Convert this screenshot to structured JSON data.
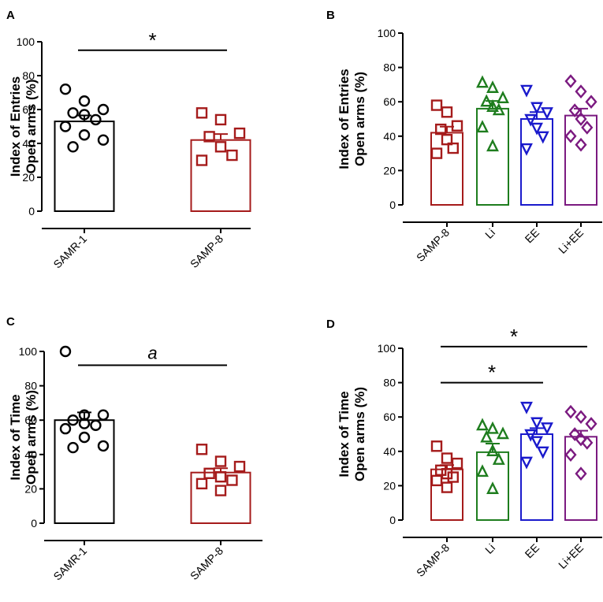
{
  "chart_data": [
    {
      "panel": "A",
      "type": "bar",
      "ylabel_line1": "Index of Entries",
      "ylabel_line2": "Open arms (%)",
      "ylim": [
        0,
        100
      ],
      "yticks": [
        "0",
        "20",
        "40",
        "60",
        "80",
        "100"
      ],
      "categories": [
        "SAMR-1",
        "SAMP-8"
      ],
      "values": [
        53,
        42
      ],
      "sem": [
        3.5,
        3.5
      ],
      "colors": [
        "#000000",
        "#a51b1b"
      ],
      "markers": [
        "circle",
        "square"
      ],
      "points": [
        [
          72,
          65,
          60,
          58,
          57,
          54,
          50,
          45,
          42,
          38
        ],
        [
          58,
          54,
          46,
          44,
          38,
          33,
          30
        ]
      ],
      "significance": [
        {
          "from": 0,
          "to": 1,
          "level": 95,
          "label": "*"
        }
      ]
    },
    {
      "panel": "B",
      "type": "bar",
      "ylabel_line1": "Index of Entries",
      "ylabel_line2": "Open arms (%)",
      "ylim": [
        0,
        100
      ],
      "yticks": [
        "0",
        "20",
        "40",
        "60",
        "80",
        "100"
      ],
      "categories": [
        "SAMP-8",
        "Li",
        "EE",
        "Li+EE"
      ],
      "values": [
        42,
        56,
        50,
        52
      ],
      "sem": [
        3.5,
        4.5,
        4,
        4
      ],
      "colors": [
        "#a51b1b",
        "#1e7d1e",
        "#1a1acc",
        "#7b1a80"
      ],
      "markers": [
        "square",
        "triangle-up",
        "triangle-down",
        "diamond"
      ],
      "points": [
        [
          58,
          54,
          46,
          44,
          38,
          33,
          30
        ],
        [
          71,
          68,
          62,
          60,
          57,
          55,
          45,
          34
        ],
        [
          67,
          57,
          54,
          50,
          45,
          40,
          33
        ],
        [
          72,
          66,
          60,
          55,
          50,
          45,
          40,
          35
        ]
      ],
      "significance": []
    },
    {
      "panel": "C",
      "type": "bar",
      "ylabel_line1": "Index of Time",
      "ylabel_line2": "Open arms (%)",
      "ylim": [
        0,
        100
      ],
      "yticks": [
        "0",
        "20",
        "40",
        "60",
        "80",
        "100"
      ],
      "categories": [
        "SAMR-1",
        "SAMP-8"
      ],
      "values": [
        60,
        29.5
      ],
      "sem": [
        4.5,
        2.5
      ],
      "colors": [
        "#000000",
        "#a51b1b"
      ],
      "markers": [
        "circle",
        "square"
      ],
      "points": [
        [
          100,
          63,
          63,
          60,
          58,
          57,
          55,
          50,
          45,
          44
        ],
        [
          43,
          36,
          33,
          29,
          27,
          25,
          23,
          19
        ]
      ],
      "significance": [
        {
          "from": 0,
          "to": 1,
          "level": 92,
          "label": "a"
        }
      ]
    },
    {
      "panel": "D",
      "type": "bar",
      "ylabel_line1": "Index of Time",
      "ylabel_line2": "Open arms (%)",
      "ylim": [
        0,
        100
      ],
      "yticks": [
        "0",
        "20",
        "40",
        "60",
        "80",
        "100"
      ],
      "categories": [
        "SAMP-8",
        "Li",
        "EE",
        "Li+EE"
      ],
      "values": [
        29.5,
        39.5,
        50,
        48.5
      ],
      "sem": [
        2.5,
        5,
        3.5,
        3.5
      ],
      "colors": [
        "#a51b1b",
        "#1e7d1e",
        "#1a1acc",
        "#7b1a80"
      ],
      "markers": [
        "square",
        "triangle-up",
        "triangle-down",
        "diamond"
      ],
      "points": [
        [
          43,
          36,
          33,
          29,
          27,
          25,
          23,
          19
        ],
        [
          55,
          53,
          50,
          48,
          40,
          35,
          28,
          18
        ],
        [
          66,
          57,
          54,
          50,
          46,
          40,
          34
        ],
        [
          63,
          60,
          56,
          50,
          47,
          45,
          38,
          27
        ]
      ],
      "significance": [
        {
          "from": 0,
          "to": 3,
          "level": 101,
          "label": "*"
        },
        {
          "from": 0,
          "to": 2,
          "level": 80,
          "label": "*"
        }
      ]
    }
  ]
}
